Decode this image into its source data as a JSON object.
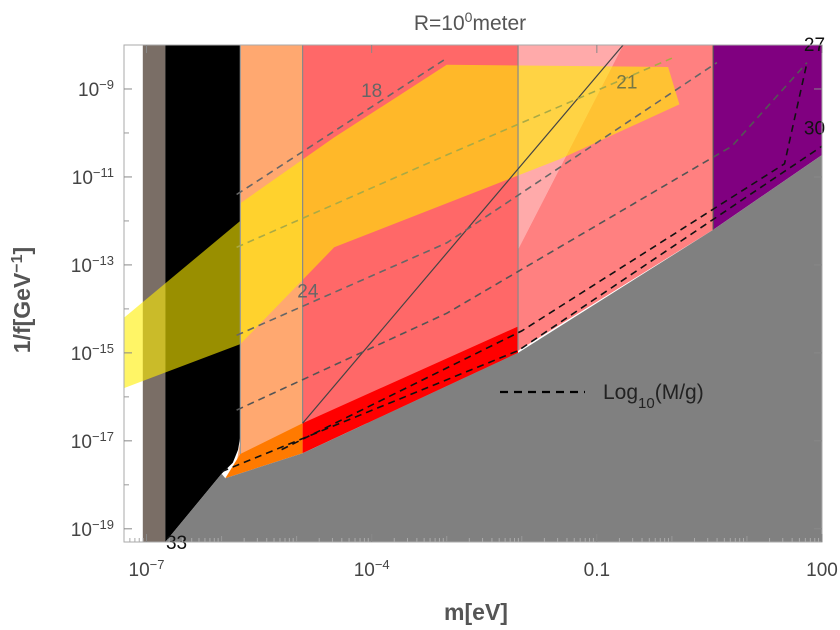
{
  "chart_data": {
    "type": "region-plot",
    "title": "R=10",
    "title_exponent": "0",
    "title_suffix": "meter",
    "xlabel": "m[eV]",
    "ylabel_main": "1/f[GeV",
    "ylabel_exponent": "−1",
    "ylabel_close": "]",
    "x_scale": "log10",
    "y_scale": "log10",
    "xlim_log10": [
      -7.3,
      2.0
    ],
    "ylim_log10": [
      -19.3,
      -8.0
    ],
    "x_ticks": [
      {
        "log": -7,
        "base": "10",
        "exp": "−7"
      },
      {
        "log": -4,
        "base": "10",
        "exp": "−4"
      },
      {
        "log": -1,
        "plain": "0.1"
      },
      {
        "log": 2,
        "plain": "100"
      }
    ],
    "y_ticks": [
      {
        "log": -9,
        "base": "10",
        "exp": "−9"
      },
      {
        "log": -11,
        "base": "10",
        "exp": "−11"
      },
      {
        "log": -13,
        "base": "10",
        "exp": "−13"
      },
      {
        "log": -15,
        "base": "10",
        "exp": "−15"
      },
      {
        "log": -17,
        "base": "10",
        "exp": "−17"
      },
      {
        "log": -19,
        "base": "10",
        "exp": "−19"
      }
    ],
    "regions": [
      {
        "name": "brown-band",
        "color": "#7a6e66",
        "polygon": [
          [
            -7.05,
            -8.0
          ],
          [
            -6.75,
            -8.0
          ],
          [
            -6.75,
            -19.3
          ],
          [
            -7.05,
            -19.3
          ]
        ]
      },
      {
        "name": "black-region",
        "color": "#000000",
        "polygon": [
          [
            -6.75,
            -8.0
          ],
          [
            -5.75,
            -8.0
          ],
          [
            -5.75,
            -16.9
          ],
          [
            -5.78,
            -17.2
          ],
          [
            -5.85,
            -17.5
          ],
          [
            -6.0,
            -17.75
          ],
          [
            -6.75,
            -19.3
          ]
        ]
      },
      {
        "name": "light-orange-region",
        "color": "#ffa870",
        "polygon": [
          [
            -5.75,
            -8.0
          ],
          [
            -4.92,
            -8.0
          ],
          [
            -4.92,
            -16.6
          ],
          [
            -5.95,
            -17.85
          ],
          [
            -5.8,
            -17.5
          ],
          [
            -5.75,
            -17.0
          ]
        ]
      },
      {
        "name": "dark-orange-region",
        "color": "#ff7a00",
        "polygon": [
          [
            -5.75,
            -17.3
          ],
          [
            -4.92,
            -16.6
          ],
          [
            -4.92,
            -17.28
          ],
          [
            -5.95,
            -17.85
          ]
        ]
      },
      {
        "name": "salmon-region",
        "color": "#ff6868",
        "polygon": [
          [
            -4.92,
            -8.0
          ],
          [
            -2.05,
            -8.0
          ],
          [
            -2.05,
            -16.6
          ],
          [
            -4.92,
            -16.6
          ]
        ]
      },
      {
        "name": "red-region",
        "color": "#ff0000",
        "polygon": [
          [
            -4.92,
            -16.6
          ],
          [
            -2.05,
            -14.4
          ],
          [
            -2.05,
            -15.0
          ],
          [
            -4.92,
            -17.28
          ]
        ]
      },
      {
        "name": "pink-region",
        "color": "#ffaaaa",
        "polygon": [
          [
            -2.05,
            -8.0
          ],
          [
            -0.65,
            -8.0
          ],
          [
            -2.05,
            -12.65
          ]
        ]
      },
      {
        "name": "rose-region",
        "color": "#ff8080",
        "polygon": [
          [
            -2.05,
            -12.65
          ],
          [
            -0.65,
            -8.0
          ],
          [
            0.55,
            -8.0
          ],
          [
            0.55,
            -12.2
          ],
          [
            -2.05,
            -14.95
          ]
        ]
      },
      {
        "name": "purple-region",
        "color": "#800080",
        "polygon": [
          [
            0.55,
            -8.0
          ],
          [
            2.0,
            -8.0
          ],
          [
            2.0,
            -10.5
          ],
          [
            0.55,
            -12.2
          ]
        ]
      },
      {
        "name": "gray-excluded-region",
        "color": "#808080",
        "polygon": [
          [
            -6.75,
            -19.3
          ],
          [
            -6.0,
            -17.75
          ],
          [
            -5.95,
            -17.85
          ],
          [
            -4.92,
            -17.28
          ],
          [
            -2.05,
            -15.0
          ],
          [
            0.55,
            -12.2
          ],
          [
            2.0,
            -10.5
          ],
          [
            2.0,
            -19.3
          ]
        ]
      }
    ],
    "yellow_band": {
      "name": "yellow-band",
      "color": "#ffee00",
      "opacity": 0.6,
      "polygon": [
        [
          -7.3,
          -14.2
        ],
        [
          -7.3,
          -15.8
        ],
        [
          -5.75,
          -14.8
        ],
        [
          -4.5,
          -12.6
        ],
        [
          -1.5,
          -10.6
        ],
        [
          0.1,
          -9.35
        ],
        [
          -0.05,
          -8.5
        ],
        [
          -3.0,
          -8.45
        ],
        [
          -4.5,
          -10.1
        ],
        [
          -5.75,
          -11.6
        ],
        [
          -5.75,
          -12.0
        ]
      ]
    },
    "divider_lines": [
      {
        "from": [
          -5.75,
          -8.0
        ],
        "to": [
          -5.75,
          -17.3
        ],
        "color": "#999999"
      },
      {
        "from": [
          -4.92,
          -8.0
        ],
        "to": [
          -4.92,
          -16.6
        ],
        "color": "#888888"
      },
      {
        "from": [
          -2.05,
          -8.0
        ],
        "to": [
          -2.05,
          -14.95
        ],
        "color": "#888888"
      },
      {
        "from": [
          0.55,
          -8.0
        ],
        "to": [
          0.55,
          -12.2
        ],
        "color": "#555555"
      },
      {
        "from": [
          -4.92,
          -16.6
        ],
        "to": [
          -0.65,
          -8.0
        ],
        "color": "#444444"
      }
    ],
    "contour_lines": [
      {
        "value": "18",
        "points": [
          [
            -5.8,
            -11.4
          ],
          [
            -3.0,
            -8.3
          ]
        ],
        "color": "#666666",
        "label_at": [
          -4.0,
          -9.05
        ],
        "label_color": "#666666"
      },
      {
        "value": "21",
        "points": [
          [
            -5.8,
            -12.6
          ],
          [
            -3.0,
            -10.5
          ],
          [
            0.0,
            -8.3
          ]
        ],
        "color": "#aaaa44",
        "label_at": [
          -0.6,
          -8.85
        ],
        "label_color": "#777744"
      },
      {
        "value": "24",
        "points": [
          [
            -5.8,
            -14.6
          ],
          [
            -3.0,
            -12.5
          ],
          [
            0.6,
            -8.4
          ]
        ],
        "color": "#666666",
        "label_at": [
          -4.85,
          -13.6
        ],
        "label_color": "#666666"
      },
      {
        "value": "",
        "points": [
          [
            -5.8,
            -16.3
          ],
          [
            -3.0,
            -14.1
          ],
          [
            0.8,
            -10.3
          ],
          [
            1.8,
            -8.4
          ]
        ],
        "color": "#555555"
      },
      {
        "value": "27",
        "points": [
          [
            -5.2,
            -17.2
          ],
          [
            -2.0,
            -14.5
          ],
          [
            1.5,
            -10.7
          ],
          [
            1.8,
            -8.4
          ]
        ],
        "color": "#111111",
        "label_at": [
          1.9,
          -8.0
        ],
        "label_color": "#111111"
      },
      {
        "value": "30",
        "points": [
          [
            -6.0,
            -17.7
          ],
          [
            -2.05,
            -14.95
          ],
          [
            2.0,
            -10.3
          ]
        ],
        "color": "#111111",
        "label_at": [
          1.9,
          -9.9
        ],
        "label_color": "#111111"
      }
    ],
    "corner_label": {
      "text": "33",
      "at": [
        -6.6,
        -19.35
      ]
    },
    "legend": {
      "label_main": "Log",
      "label_sub": "10",
      "label_rest": "(M/g)",
      "position": "center-right",
      "line_style": "dashed"
    }
  }
}
